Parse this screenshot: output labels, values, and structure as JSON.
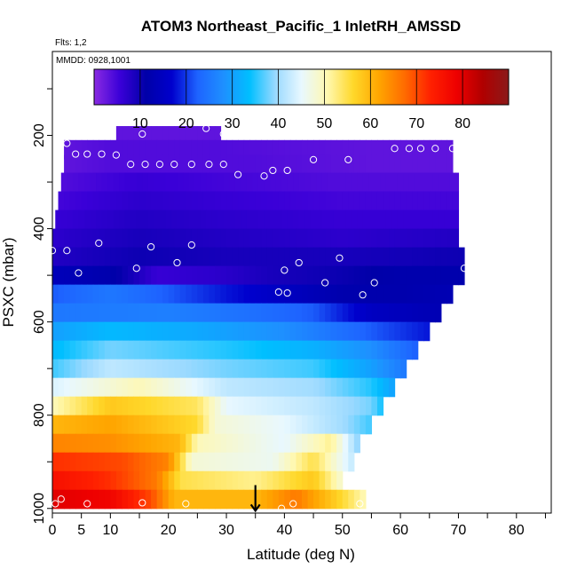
{
  "chart_data": {
    "type": "heatmap",
    "title": "ATOM3 Northeast_Pacific_1 InletRH_AMSSD",
    "flights_label": "Flts: 1,2",
    "date_label": "MMDD: 0928,1001",
    "xlabel": "Latitude (deg N)",
    "ylabel": "PSXC (mbar)",
    "xlim": [
      0,
      86
    ],
    "ylim": [
      1010,
      20
    ],
    "x_ticks": [
      0,
      5,
      10,
      20,
      30,
      40,
      50,
      60,
      70,
      80
    ],
    "y_ticks": [
      200,
      400,
      600,
      800,
      1000
    ],
    "colorbar": {
      "min": 0,
      "max": 90,
      "ticks": [
        10,
        20,
        30,
        40,
        50,
        60,
        70,
        80
      ],
      "colors": [
        "#8a2be2",
        "#3a00d8",
        "#0000a8",
        "#0000cd",
        "#1e64ff",
        "#1e90ff",
        "#00bfff",
        "#9ad9ff",
        "#e8f8ff",
        "#fff8b0",
        "#ffd82a",
        "#ffa500",
        "#ff6a00",
        "#ff2000",
        "#ee0000",
        "#b00000",
        "#8b1a1a"
      ]
    },
    "rh_levels": [
      {
        "p": 200,
        "pts": [
          [
            11,
            3
          ],
          [
            29,
            3
          ]
        ]
      },
      {
        "p": 230,
        "pts": [
          [
            2,
            3
          ],
          [
            10,
            4
          ],
          [
            30,
            4
          ],
          [
            55,
            3
          ],
          [
            69,
            3
          ]
        ]
      },
      {
        "p": 262,
        "pts": [
          [
            2,
            3
          ],
          [
            10,
            4
          ],
          [
            35,
            4
          ],
          [
            55,
            3
          ],
          [
            69,
            3
          ]
        ]
      },
      {
        "p": 300,
        "pts": [
          [
            1.5,
            4
          ],
          [
            15,
            6
          ],
          [
            30,
            5
          ],
          [
            50,
            4
          ],
          [
            70,
            4
          ]
        ]
      },
      {
        "p": 340,
        "pts": [
          [
            1,
            5
          ],
          [
            15,
            7
          ],
          [
            30,
            6
          ],
          [
            50,
            5
          ],
          [
            70,
            5
          ]
        ]
      },
      {
        "p": 380,
        "pts": [
          [
            0.5,
            6
          ],
          [
            15,
            8
          ],
          [
            30,
            7
          ],
          [
            50,
            6
          ],
          [
            70,
            6
          ]
        ]
      },
      {
        "p": 420,
        "pts": [
          [
            0,
            7
          ],
          [
            15,
            9
          ],
          [
            30,
            8
          ],
          [
            50,
            7
          ],
          [
            70,
            8
          ]
        ]
      },
      {
        "p": 460,
        "pts": [
          [
            0,
            8
          ],
          [
            15,
            10
          ],
          [
            30,
            9
          ],
          [
            50,
            9
          ],
          [
            71,
            10
          ]
        ]
      },
      {
        "p": 500,
        "pts": [
          [
            0,
            14
          ],
          [
            10,
            12
          ],
          [
            18,
            6
          ],
          [
            28,
            7
          ],
          [
            38,
            9
          ],
          [
            48,
            10
          ],
          [
            60,
            12
          ],
          [
            71,
            12
          ]
        ]
      },
      {
        "p": 540,
        "pts": [
          [
            0,
            22
          ],
          [
            10,
            25
          ],
          [
            20,
            22
          ],
          [
            30,
            18
          ],
          [
            40,
            15
          ],
          [
            50,
            12
          ],
          [
            60,
            12
          ],
          [
            69,
            13
          ]
        ]
      },
      {
        "p": 580,
        "pts": [
          [
            0,
            25
          ],
          [
            20,
            26
          ],
          [
            35,
            24
          ],
          [
            45,
            22
          ],
          [
            55,
            15
          ],
          [
            67,
            13
          ]
        ]
      },
      {
        "p": 620,
        "pts": [
          [
            0,
            30
          ],
          [
            10,
            33
          ],
          [
            25,
            31
          ],
          [
            40,
            28
          ],
          [
            55,
            22
          ],
          [
            65,
            18
          ]
        ]
      },
      {
        "p": 660,
        "pts": [
          [
            0,
            33
          ],
          [
            10,
            38
          ],
          [
            30,
            35
          ],
          [
            45,
            32
          ],
          [
            55,
            28
          ],
          [
            63,
            22
          ]
        ]
      },
      {
        "p": 700,
        "pts": [
          [
            0,
            36
          ],
          [
            10,
            42
          ],
          [
            30,
            38
          ],
          [
            45,
            36
          ],
          [
            55,
            30
          ],
          [
            61,
            25
          ]
        ]
      },
      {
        "p": 740,
        "pts": [
          [
            0,
            44
          ],
          [
            15,
            50
          ],
          [
            30,
            42
          ],
          [
            45,
            40
          ],
          [
            55,
            35
          ],
          [
            59,
            30
          ]
        ]
      },
      {
        "p": 780,
        "pts": [
          [
            0,
            50
          ],
          [
            10,
            58
          ],
          [
            25,
            54
          ],
          [
            30,
            45
          ],
          [
            45,
            42
          ],
          [
            55,
            38
          ],
          [
            57,
            34
          ]
        ]
      },
      {
        "p": 820,
        "pts": [
          [
            0,
            60
          ],
          [
            10,
            62
          ],
          [
            25,
            56
          ],
          [
            28,
            48
          ],
          [
            40,
            45
          ],
          [
            50,
            40
          ],
          [
            55,
            36
          ]
        ]
      },
      {
        "p": 860,
        "pts": [
          [
            0,
            65
          ],
          [
            10,
            64
          ],
          [
            22,
            60
          ],
          [
            25,
            50
          ],
          [
            40,
            45
          ],
          [
            48,
            52
          ],
          [
            53,
            38
          ]
        ]
      },
      {
        "p": 900,
        "pts": [
          [
            0,
            72
          ],
          [
            12,
            70
          ],
          [
            20,
            65
          ],
          [
            24,
            48
          ],
          [
            38,
            46
          ],
          [
            45,
            55
          ],
          [
            52,
            42
          ]
        ]
      },
      {
        "p": 940,
        "pts": [
          [
            0,
            76
          ],
          [
            10,
            72
          ],
          [
            18,
            66
          ],
          [
            22,
            55
          ],
          [
            35,
            52
          ],
          [
            45,
            58
          ],
          [
            50,
            48
          ]
        ]
      },
      {
        "p": 980,
        "pts": [
          [
            0,
            80
          ],
          [
            10,
            78
          ],
          [
            17,
            70
          ],
          [
            21,
            60
          ],
          [
            35,
            60
          ],
          [
            42,
            66
          ],
          [
            50,
            56
          ],
          [
            54,
            50
          ]
        ]
      }
    ],
    "observations": [
      {
        "lat": 2.5,
        "p": 217
      },
      {
        "lat": 4,
        "p": 240
      },
      {
        "lat": 6,
        "p": 240
      },
      {
        "lat": 8.5,
        "p": 240
      },
      {
        "lat": 11,
        "p": 242
      },
      {
        "lat": 13.5,
        "p": 262
      },
      {
        "lat": 16,
        "p": 262
      },
      {
        "lat": 18.5,
        "p": 262
      },
      {
        "lat": 21,
        "p": 262
      },
      {
        "lat": 24,
        "p": 262
      },
      {
        "lat": 27,
        "p": 262
      },
      {
        "lat": 29.5,
        "p": 262
      },
      {
        "lat": 32,
        "p": 284
      },
      {
        "lat": 36.5,
        "p": 287
      },
      {
        "lat": 38,
        "p": 275
      },
      {
        "lat": 40.5,
        "p": 275
      },
      {
        "lat": 45,
        "p": 252
      },
      {
        "lat": 51,
        "p": 252
      },
      {
        "lat": 59,
        "p": 228
      },
      {
        "lat": 61.5,
        "p": 228
      },
      {
        "lat": 63.5,
        "p": 228
      },
      {
        "lat": 66,
        "p": 228
      },
      {
        "lat": 69,
        "p": 228
      },
      {
        "lat": 15.5,
        "p": 197
      },
      {
        "lat": 26.5,
        "p": 185
      },
      {
        "lat": 29.5,
        "p": 197
      },
      {
        "lat": 0,
        "p": 447
      },
      {
        "lat": 2.5,
        "p": 447
      },
      {
        "lat": 8,
        "p": 431
      },
      {
        "lat": 17,
        "p": 439
      },
      {
        "lat": 24,
        "p": 435
      },
      {
        "lat": 4.5,
        "p": 495
      },
      {
        "lat": 14.5,
        "p": 485
      },
      {
        "lat": 21.5,
        "p": 473
      },
      {
        "lat": 42.5,
        "p": 473
      },
      {
        "lat": 40,
        "p": 489
      },
      {
        "lat": 49.5,
        "p": 463
      },
      {
        "lat": 47,
        "p": 516
      },
      {
        "lat": 55.5,
        "p": 516
      },
      {
        "lat": 53.5,
        "p": 542
      },
      {
        "lat": 39,
        "p": 536
      },
      {
        "lat": 40.5,
        "p": 538
      },
      {
        "lat": 71,
        "p": 485
      },
      {
        "lat": 0.5,
        "p": 990
      },
      {
        "lat": 1.5,
        "p": 980
      },
      {
        "lat": 6,
        "p": 990
      },
      {
        "lat": 15.5,
        "p": 988
      },
      {
        "lat": 23,
        "p": 990
      },
      {
        "lat": 39.5,
        "p": 1000
      },
      {
        "lat": 41.5,
        "p": 990
      },
      {
        "lat": 53,
        "p": 990
      }
    ],
    "arrow": {
      "lat": 35,
      "p_top": 950,
      "p_bottom": 1005
    }
  }
}
